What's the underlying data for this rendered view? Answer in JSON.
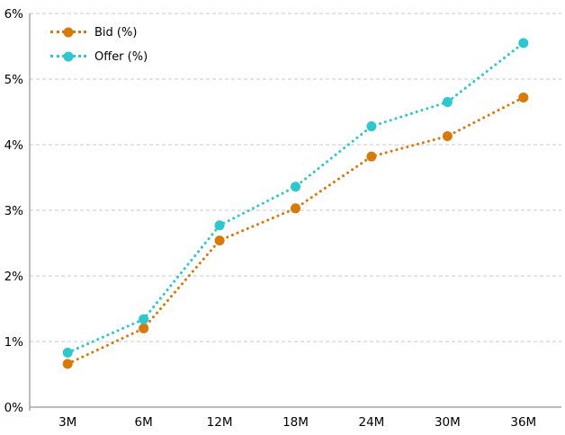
{
  "chart_data": {
    "type": "line",
    "title": "",
    "categories": [
      "3M",
      "6M",
      "12M",
      "18M",
      "24M",
      "30M",
      "36M"
    ],
    "series": [
      {
        "name": "Bid (%)",
        "color": "#D8790B",
        "values": [
          0.66,
          1.2,
          2.54,
          3.03,
          3.82,
          4.13,
          4.72
        ]
      },
      {
        "name": "Offer (%)",
        "color": "#2FC7CE",
        "values": [
          0.83,
          1.34,
          2.77,
          3.36,
          4.28,
          4.65,
          5.55
        ]
      }
    ],
    "xlabel": "",
    "ylabel": "",
    "ylim": [
      0,
      6
    ],
    "ytick_step": 1,
    "ytick_labels": [
      "0%",
      "1%",
      "2%",
      "3%",
      "4%",
      "5%",
      "6%"
    ],
    "grid": "horizontal-dashed",
    "line_style": "dotted",
    "marker": "circle",
    "legend_position": "top-left-inside"
  },
  "legend": {
    "items": [
      {
        "label": "Bid (%)"
      },
      {
        "label": "Offer (%)"
      }
    ]
  },
  "colors": {
    "background": "#FFFFFF",
    "axis_line": "#A6A6A6",
    "gridline": "#C9C9C9",
    "tick_text": "#000000"
  }
}
